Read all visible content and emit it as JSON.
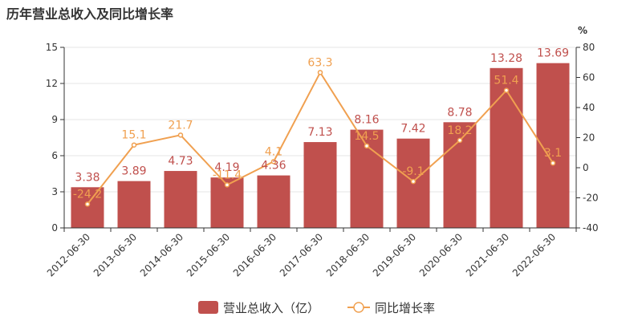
{
  "chart_data": {
    "type": "bar",
    "title": "历年营业总收入及同比增长率",
    "categories": [
      "2012-06-30",
      "2013-06-30",
      "2014-06-30",
      "2015-06-30",
      "2016-06-30",
      "2017-06-30",
      "2018-06-30",
      "2019-06-30",
      "2020-06-30",
      "2021-06-30",
      "2022-06-30"
    ],
    "series": [
      {
        "name": "营业总收入（亿）",
        "type": "bar",
        "axis": "left",
        "color": "#c0504d",
        "values": [
          3.38,
          3.89,
          4.73,
          4.19,
          4.36,
          7.13,
          8.16,
          7.42,
          8.78,
          13.28,
          13.69
        ]
      },
      {
        "name": "同比增长率",
        "type": "line",
        "axis": "right",
        "color": "#f0a050",
        "values": [
          -24.2,
          15.1,
          21.7,
          -11.4,
          4.1,
          63.3,
          14.5,
          -9.1,
          18.2,
          51.4,
          3.1
        ]
      }
    ],
    "y_left": {
      "min": 0,
      "max": 15,
      "ticks": [
        0,
        3,
        6,
        9,
        12,
        15
      ]
    },
    "y_right": {
      "label": "%",
      "min": -40,
      "max": 80,
      "ticks": [
        -40,
        -20,
        0,
        20,
        40,
        60,
        80
      ]
    },
    "grid": true,
    "legend_position": "bottom-center"
  }
}
